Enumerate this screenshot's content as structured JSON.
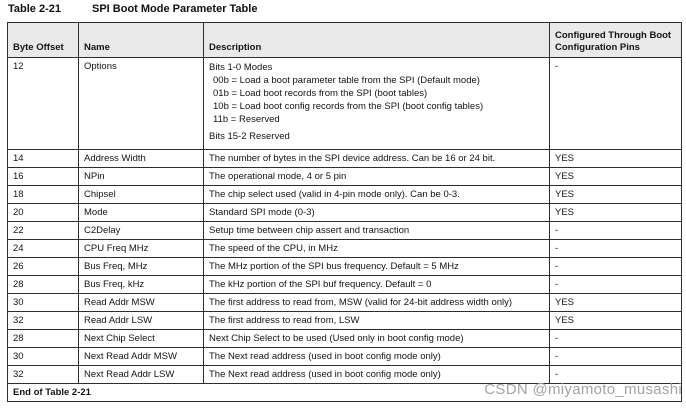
{
  "page": {
    "title_label": "Table 2-21",
    "title_text": "SPI Boot Mode Parameter Table",
    "watermark": "CSDN @miyamoto_musashi"
  },
  "table": {
    "columns": [
      "Byte Offset",
      "Name",
      "Description",
      "Configured Through Boot Configuration Pins"
    ],
    "rows": [
      {
        "offset": "12",
        "name": "Options",
        "desc_lines": [
          {
            "t": "Bits 1-0 Modes",
            "ind": 0,
            "gap": false
          },
          {
            "t": "00b = Load a boot parameter table from the SPI (Default mode)",
            "ind": 1,
            "gap": false
          },
          {
            "t": "01b = Load boot records from the SPI (boot tables)",
            "ind": 1,
            "gap": false
          },
          {
            "t": "10b = Load boot config records from the SPI (boot config tables)",
            "ind": 1,
            "gap": false
          },
          {
            "t": "11b = Reserved",
            "ind": 1,
            "gap": false
          },
          {
            "t": "Bits 15-2 Reserved",
            "ind": 0,
            "gap": true
          }
        ],
        "configured": "-"
      },
      {
        "offset": "14",
        "name": "Address Width",
        "desc": "The number of bytes in the SPI device address. Can be 16 or 24 bit.",
        "configured": "YES"
      },
      {
        "offset": "16",
        "name": "NPin",
        "desc": "The operational mode, 4 or 5 pin",
        "configured": "YES"
      },
      {
        "offset": "18",
        "name": "Chipsel",
        "desc": "The chip select used (valid in 4-pin mode only). Can be 0-3.",
        "configured": "YES"
      },
      {
        "offset": "20",
        "name": "Mode",
        "desc": "Standard SPI mode (0-3)",
        "configured": "YES"
      },
      {
        "offset": "22",
        "name": "C2Delay",
        "desc": "Setup time between chip assert and transaction",
        "configured": "-"
      },
      {
        "offset": "24",
        "name": "CPU Freq MHz",
        "desc": "The speed of the CPU, in MHz",
        "configured": "-"
      },
      {
        "offset": "26",
        "name": "Bus Freq, MHz",
        "desc": "The MHz portion of the SPI bus frequency. Default = 5 MHz",
        "configured": "-"
      },
      {
        "offset": "28",
        "name": "Bus Freq, kHz",
        "desc": "The kHz portion of the SPI buf frequency. Default = 0",
        "configured": "-"
      },
      {
        "offset": "30",
        "name": "Read Addr MSW",
        "desc": "The first address to read from, MSW (valid for 24-bit address width only)",
        "configured": "YES"
      },
      {
        "offset": "32",
        "name": "Read Addr LSW",
        "desc": "The first address to read from, LSW",
        "configured": "YES"
      },
      {
        "offset": "28",
        "name": "Next Chip Select",
        "desc": "Next Chip Select to be used (Used only in boot config mode)",
        "configured": "-"
      },
      {
        "offset": "30",
        "name": "Next Read Addr MSW",
        "desc": "The Next read address (used in boot config mode only)",
        "configured": "-"
      },
      {
        "offset": "32",
        "name": "Next Read Addr LSW",
        "desc": "The Next read address (used in boot config mode only)",
        "configured": "-"
      }
    ],
    "footer": "End of Table 2-21"
  }
}
